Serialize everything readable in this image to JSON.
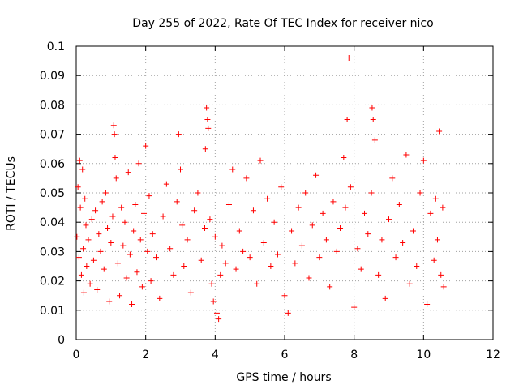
{
  "chart_data": {
    "type": "scatter",
    "title": "Day 255 of 2022, Rate Of TEC Index for receiver nico",
    "xlabel": "GPS time / hours",
    "ylabel": "ROTI / TECUs",
    "xlim": [
      0,
      12
    ],
    "ylim": [
      0,
      0.1
    ],
    "x_ticks": [
      0,
      2,
      4,
      6,
      8,
      10,
      12
    ],
    "x_tick_labels": [
      "0",
      "2",
      "4",
      "6",
      "8",
      "10",
      "12"
    ],
    "y_ticks": [
      0,
      0.01,
      0.02,
      0.03,
      0.04,
      0.05,
      0.06,
      0.07,
      0.08,
      0.09,
      0.1
    ],
    "y_tick_labels": [
      "0",
      "0.01",
      "0.02",
      "0.03",
      "0.04",
      "0.05",
      "0.06",
      "0.07",
      "0.08",
      "0.09",
      "0.1"
    ],
    "grid": true,
    "marker": "+",
    "series_color": "#ff0000",
    "series": [
      {
        "x": [
          0.02,
          0.05,
          0.08,
          0.1,
          0.12,
          0.15,
          0.18,
          0.2,
          0.22,
          0.25,
          0.28,
          0.3,
          0.35,
          0.4,
          0.45,
          0.5,
          0.55,
          0.6,
          0.65,
          0.7,
          0.75,
          0.8,
          0.85,
          0.9,
          0.95,
          1.0,
          1.05,
          1.08,
          1.1,
          1.12,
          1.15,
          1.2,
          1.25,
          1.3,
          1.35,
          1.4,
          1.45,
          1.5,
          1.55,
          1.6,
          1.65,
          1.7,
          1.75,
          1.8,
          1.85,
          1.9,
          1.95,
          2.0,
          2.05,
          2.1,
          2.15,
          2.2,
          2.3,
          2.4,
          2.5,
          2.6,
          2.7,
          2.8,
          2.9,
          2.95,
          3.0,
          3.05,
          3.1,
          3.2,
          3.3,
          3.4,
          3.5,
          3.6,
          3.7,
          3.72,
          3.75,
          3.78,
          3.8,
          3.85,
          3.9,
          3.95,
          4.0,
          4.05,
          4.1,
          4.15,
          4.2,
          4.3,
          4.4,
          4.5,
          4.6,
          4.7,
          4.8,
          4.9,
          5.0,
          5.1,
          5.2,
          5.3,
          5.4,
          5.5,
          5.6,
          5.7,
          5.8,
          5.9,
          6.0,
          6.1,
          6.2,
          6.3,
          6.4,
          6.5,
          6.6,
          6.7,
          6.8,
          6.9,
          7.0,
          7.1,
          7.2,
          7.3,
          7.4,
          7.5,
          7.6,
          7.7,
          7.75,
          7.8,
          7.85,
          7.9,
          8.0,
          8.1,
          8.2,
          8.3,
          8.4,
          8.5,
          8.52,
          8.55,
          8.6,
          8.7,
          8.8,
          8.9,
          9.0,
          9.1,
          9.2,
          9.3,
          9.4,
          9.5,
          9.6,
          9.7,
          9.8,
          9.9,
          10.0,
          10.1,
          10.2,
          10.3,
          10.35,
          10.4,
          10.45,
          10.5,
          10.55,
          10.58
        ],
        "y": [
          0.035,
          0.052,
          0.028,
          0.061,
          0.045,
          0.022,
          0.058,
          0.031,
          0.016,
          0.048,
          0.039,
          0.025,
          0.034,
          0.019,
          0.041,
          0.027,
          0.044,
          0.017,
          0.036,
          0.03,
          0.047,
          0.024,
          0.05,
          0.038,
          0.013,
          0.033,
          0.042,
          0.073,
          0.07,
          0.062,
          0.055,
          0.026,
          0.015,
          0.045,
          0.032,
          0.04,
          0.021,
          0.057,
          0.029,
          0.012,
          0.037,
          0.046,
          0.023,
          0.06,
          0.034,
          0.018,
          0.043,
          0.066,
          0.03,
          0.049,
          0.02,
          0.036,
          0.028,
          0.014,
          0.042,
          0.053,
          0.031,
          0.022,
          0.047,
          0.07,
          0.058,
          0.039,
          0.025,
          0.034,
          0.016,
          0.044,
          0.05,
          0.027,
          0.038,
          0.065,
          0.079,
          0.075,
          0.072,
          0.041,
          0.019,
          0.013,
          0.035,
          0.009,
          0.007,
          0.022,
          0.032,
          0.026,
          0.046,
          0.058,
          0.024,
          0.037,
          0.03,
          0.055,
          0.028,
          0.044,
          0.019,
          0.061,
          0.033,
          0.048,
          0.025,
          0.04,
          0.029,
          0.052,
          0.015,
          0.009,
          0.037,
          0.026,
          0.045,
          0.032,
          0.05,
          0.021,
          0.039,
          0.056,
          0.028,
          0.043,
          0.034,
          0.018,
          0.047,
          0.03,
          0.038,
          0.062,
          0.045,
          0.075,
          0.096,
          0.052,
          0.011,
          0.031,
          0.024,
          0.043,
          0.036,
          0.05,
          0.079,
          0.075,
          0.068,
          0.022,
          0.034,
          0.014,
          0.041,
          0.055,
          0.028,
          0.046,
          0.033,
          0.063,
          0.019,
          0.037,
          0.025,
          0.05,
          0.061,
          0.012,
          0.043,
          0.027,
          0.048,
          0.034,
          0.071,
          0.022,
          0.045,
          0.018
        ]
      }
    ]
  }
}
